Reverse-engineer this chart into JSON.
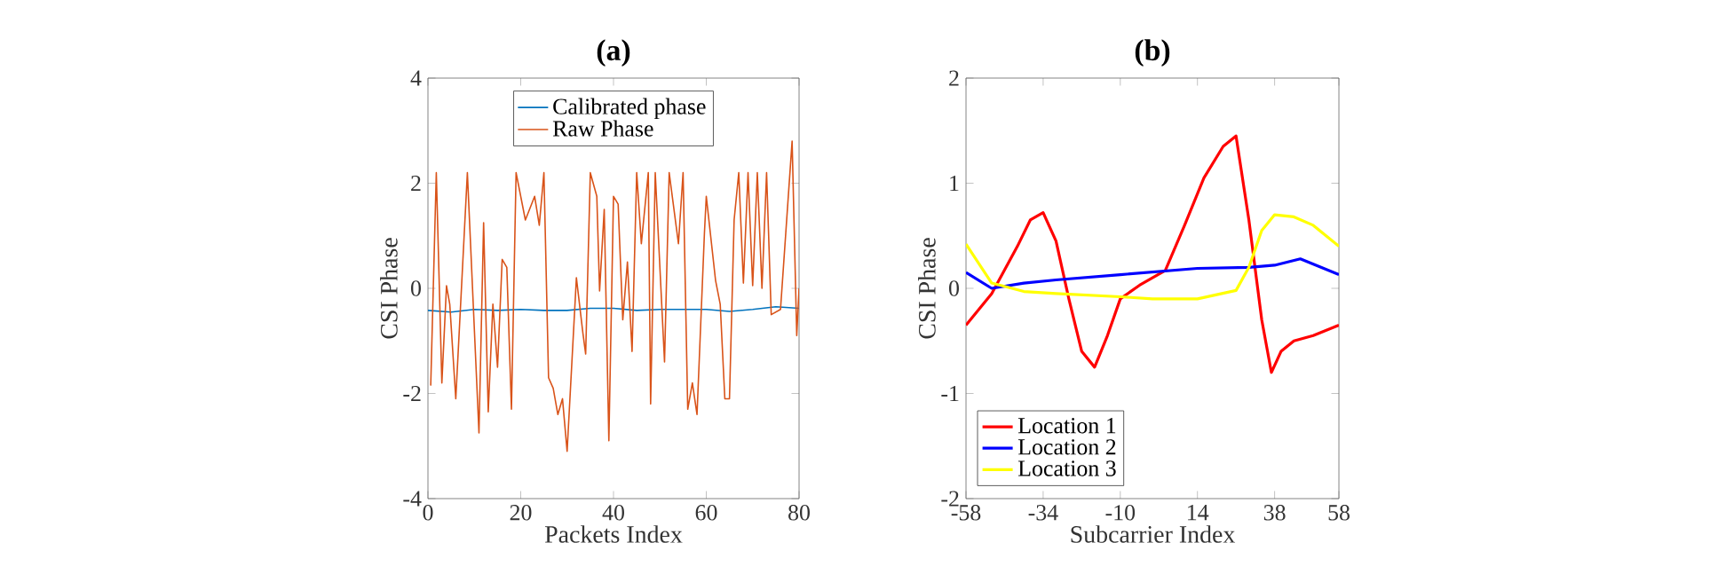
{
  "chart_data": [
    {
      "type": "line",
      "title": "(a)",
      "xlabel": "Packets Index",
      "ylabel": "CSI Phase",
      "xlim": [
        0,
        80
      ],
      "ylim": [
        -4,
        4
      ],
      "xticks": [
        0,
        20,
        40,
        60,
        80
      ],
      "yticks": [
        -4,
        -2,
        0,
        2,
        4
      ],
      "legend": "top",
      "series": [
        {
          "name": "Calibrated phase",
          "color": "#0072bd",
          "x": [
            0,
            5,
            10,
            15,
            20,
            25,
            30,
            35,
            40,
            45,
            50,
            55,
            60,
            65,
            70,
            75,
            80
          ],
          "values": [
            -0.42,
            -0.45,
            -0.4,
            -0.42,
            -0.4,
            -0.42,
            -0.42,
            -0.38,
            -0.38,
            -0.42,
            -0.4,
            -0.4,
            -0.4,
            -0.44,
            -0.4,
            -0.35,
            -0.38
          ]
        },
        {
          "name": "Raw Phase",
          "color": "#d95319",
          "x": [
            0.6,
            1.8,
            3,
            4,
            4.7,
            6,
            8.5,
            11,
            12,
            13,
            14,
            15,
            16,
            17,
            18,
            19,
            21,
            23,
            24,
            25,
            26,
            27,
            28,
            29,
            30,
            32,
            33.4,
            34,
            35,
            36.4,
            37,
            38,
            39,
            40,
            41,
            42,
            43,
            44,
            45,
            46,
            47.5,
            48,
            49,
            51,
            52,
            54,
            55,
            56,
            57,
            58,
            59.6,
            60,
            62,
            63,
            64,
            65,
            66,
            67,
            68,
            69,
            70,
            71,
            72,
            73,
            74,
            76,
            78.5,
            79.5,
            80
          ],
          "values": [
            -1.85,
            2.2,
            -1.8,
            0.05,
            -0.3,
            -2.1,
            2.2,
            -2.75,
            1.25,
            -2.35,
            -0.3,
            -1.5,
            0.55,
            0.4,
            -2.3,
            2.2,
            1.3,
            1.75,
            1.2,
            2.2,
            -1.7,
            -1.9,
            -2.4,
            -2.1,
            -3.1,
            0.2,
            -0.85,
            -1.25,
            2.2,
            1.75,
            -0.05,
            1.5,
            -2.9,
            1.75,
            1.6,
            -0.6,
            0.5,
            -1.2,
            2.2,
            0.85,
            2.2,
            -2.2,
            2.2,
            -1.4,
            2.2,
            0.85,
            2.2,
            -2.3,
            -1.8,
            -2.4,
            1.05,
            1.75,
            0.15,
            -0.3,
            -2.1,
            -2.1,
            1.3,
            2.2,
            0.1,
            2.2,
            0.05,
            2.2,
            0,
            2.2,
            -0.5,
            -0.4,
            2.8,
            -0.9,
            0
          ]
        }
      ]
    },
    {
      "type": "line",
      "title": "(b)",
      "xlabel": "Subcarrier Index",
      "ylabel": "CSI Phase",
      "xlim": [
        -58,
        58
      ],
      "ylim": [
        -2,
        2
      ],
      "xticks": [
        -58,
        -34,
        -10,
        14,
        38,
        58
      ],
      "yticks": [
        -2,
        -1,
        0,
        1,
        2
      ],
      "legend": "bottom left",
      "series": [
        {
          "name": "Location 1",
          "color": "#ff0000",
          "x": [
            -58,
            -50,
            -42,
            -38,
            -34,
            -30,
            -26,
            -22,
            -18,
            -14,
            -10,
            -4,
            4,
            10,
            16,
            22,
            26,
            30,
            34,
            37,
            40,
            44,
            50,
            58
          ],
          "values": [
            -0.35,
            -0.05,
            0.4,
            0.65,
            0.72,
            0.45,
            -0.1,
            -0.6,
            -0.75,
            -0.45,
            -0.1,
            0.03,
            0.17,
            0.6,
            1.05,
            1.35,
            1.45,
            0.65,
            -0.3,
            -0.8,
            -0.6,
            -0.5,
            -0.45,
            -0.35
          ]
        },
        {
          "name": "Location 2",
          "color": "#0000ff",
          "x": [
            -58,
            -50,
            -40,
            -30,
            -10,
            14,
            30,
            38,
            46,
            58
          ],
          "values": [
            0.15,
            0.0,
            0.05,
            0.08,
            0.13,
            0.19,
            0.2,
            0.22,
            0.28,
            0.13
          ]
        },
        {
          "name": "Location 3",
          "color": "#ffff00",
          "x": [
            -58,
            -50,
            -40,
            -30,
            -10,
            0,
            14,
            26,
            30,
            34,
            38,
            44,
            50,
            58
          ],
          "values": [
            0.42,
            0.05,
            -0.03,
            -0.05,
            -0.08,
            -0.1,
            -0.1,
            -0.02,
            0.2,
            0.55,
            0.7,
            0.68,
            0.6,
            0.4
          ]
        }
      ]
    }
  ]
}
